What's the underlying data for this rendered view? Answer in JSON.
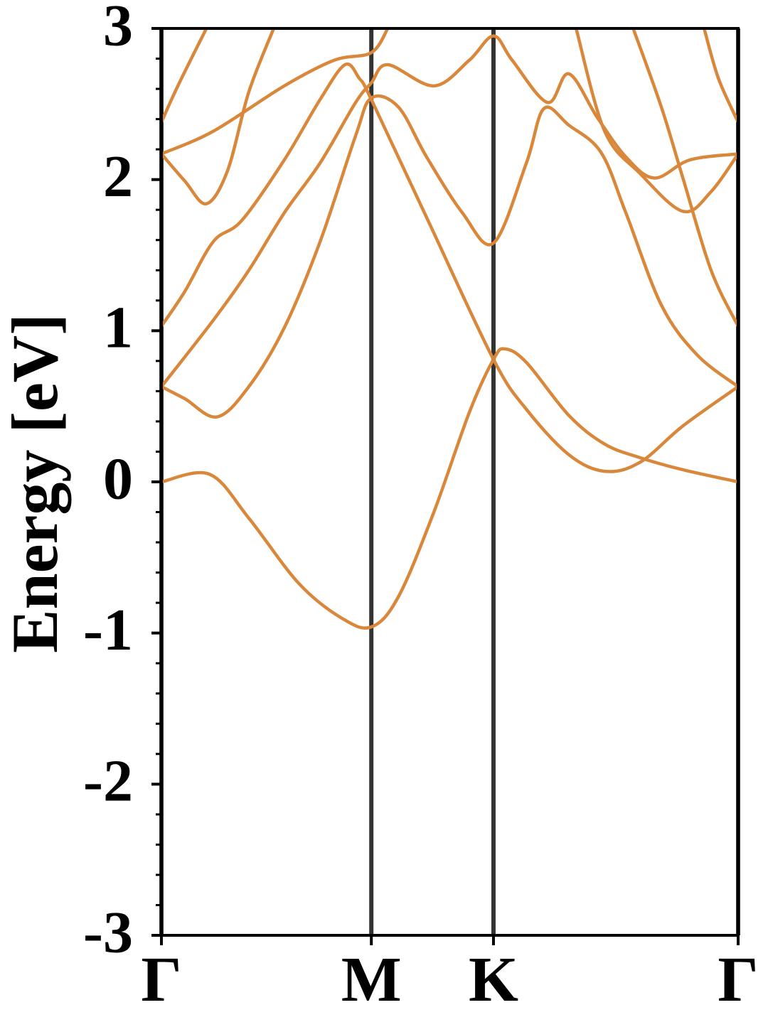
{
  "chart_data": {
    "type": "line",
    "ylabel": "Energy [eV]",
    "color": "#d9873a",
    "xgrid": true,
    "grid_color": "#333333",
    "xlim": [
      0,
      1.577
    ],
    "ylim": [
      -3,
      3
    ],
    "xticks": [
      {
        "value": 0,
        "label": "Γ"
      },
      {
        "value": 0.574,
        "label": "M"
      },
      {
        "value": 0.908,
        "label": "K"
      },
      {
        "value": 1.577,
        "label": "Γ"
      }
    ],
    "yticks": [
      -3,
      -2,
      -1,
      0,
      1,
      2,
      3
    ],
    "yminorticks": [
      -2.8,
      -2.6,
      -2.4,
      -2.2,
      -1.8,
      -1.6,
      -1.4,
      -1.2,
      -0.8,
      -0.6,
      -0.4,
      -0.2,
      0.2,
      0.4,
      0.6,
      0.8,
      1.2,
      1.4,
      1.6,
      1.8,
      2.2,
      2.4,
      2.6,
      2.8
    ],
    "series": [
      {
        "x": [
          0,
          0.132,
          0.239,
          0.375,
          0.492,
          0.574,
          0.648,
          0.745,
          0.842,
          0.908,
          0.939,
          0.998,
          1.114,
          1.212,
          1.309,
          1.426,
          1.577
        ],
        "values": [
          0,
          0.05,
          -0.24,
          -0.67,
          -0.9,
          -0.96,
          -0.76,
          -0.2,
          0.46,
          0.81,
          0.88,
          0.79,
          0.44,
          0.25,
          0.16,
          0.08,
          0
        ]
      },
      {
        "x": [
          0,
          0.064,
          0.152,
          0.239,
          0.336,
          0.434,
          0.531,
          0.574,
          0.648,
          0.725,
          0.823,
          0.908,
          0.998,
          1.046,
          1.114,
          1.202,
          1.27,
          1.367,
          1.465,
          1.577
        ],
        "values": [
          0.63,
          0.55,
          0.43,
          0.63,
          1.02,
          1.59,
          2.29,
          2.54,
          2.48,
          2.15,
          1.78,
          1.58,
          2.11,
          2.47,
          2.36,
          2.18,
          1.78,
          1.17,
          0.84,
          0.63
        ]
      },
      {
        "x": [
          0,
          0.142,
          0.239,
          0.336,
          0.434,
          0.531,
          0.574,
          0.619,
          0.745,
          0.842,
          0.908,
          0.959,
          1.056,
          1.114,
          1.192,
          1.27,
          1.348,
          1.445,
          1.577
        ],
        "values": [
          0.63,
          1.07,
          1.4,
          1.78,
          2.11,
          2.51,
          2.64,
          2.76,
          2.62,
          2.79,
          2.95,
          2.79,
          2.51,
          2.7,
          2.41,
          2.15,
          2.01,
          2.13,
          2.17
        ]
      },
      {
        "x": [
          0,
          0.064,
          0.142,
          0.22,
          0.336,
          0.434,
          0.502,
          0.541,
          0.574,
          0.725,
          0.908,
          0.998,
          1.114,
          1.212,
          1.309,
          1.426,
          1.577
        ],
        "values": [
          1.03,
          1.26,
          1.59,
          1.73,
          2.13,
          2.53,
          2.76,
          2.67,
          2.53,
          1.75,
          0.81,
          0.48,
          0.18,
          0.07,
          0.13,
          0.37,
          0.63
        ]
      },
      {
        "x": [
          0,
          0.142,
          0.336,
          0.473,
          0.574,
          0.619
        ],
        "values": [
          2.17,
          2.32,
          2.62,
          2.79,
          2.84,
          3.0
        ]
      },
      {
        "x": [
          0,
          0.064,
          0.123,
          0.181,
          0.239,
          0.307
        ],
        "values": [
          2.17,
          1.99,
          1.84,
          2.06,
          2.58,
          3.0
        ]
      },
      {
        "x": [
          0,
          0.045,
          0.123
        ],
        "values": [
          2.38,
          2.62,
          3.0
        ]
      },
      {
        "x": [
          1.134,
          1.212,
          1.309,
          1.426,
          1.503,
          1.577
        ],
        "values": [
          3.0,
          2.32,
          2.04,
          1.79,
          1.92,
          2.17
        ]
      },
      {
        "x": [
          1.29,
          1.367,
          1.426,
          1.503,
          1.577
        ],
        "values": [
          3.0,
          2.48,
          2.01,
          1.4,
          1.03
        ]
      },
      {
        "x": [
          1.484,
          1.523,
          1.577
        ],
        "values": [
          3.0,
          2.67,
          2.38
        ]
      }
    ]
  }
}
